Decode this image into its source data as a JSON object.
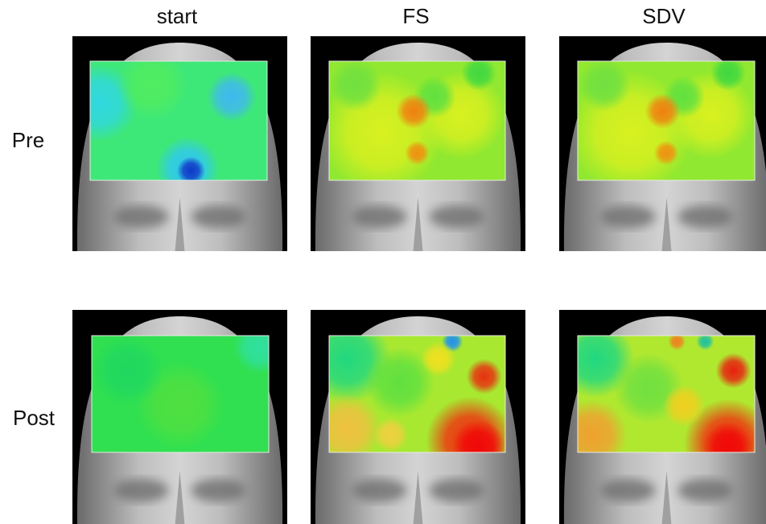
{
  "column_titles": [
    "start",
    "FS",
    "SDV"
  ],
  "row_labels": [
    "Pre",
    "Post"
  ]
}
